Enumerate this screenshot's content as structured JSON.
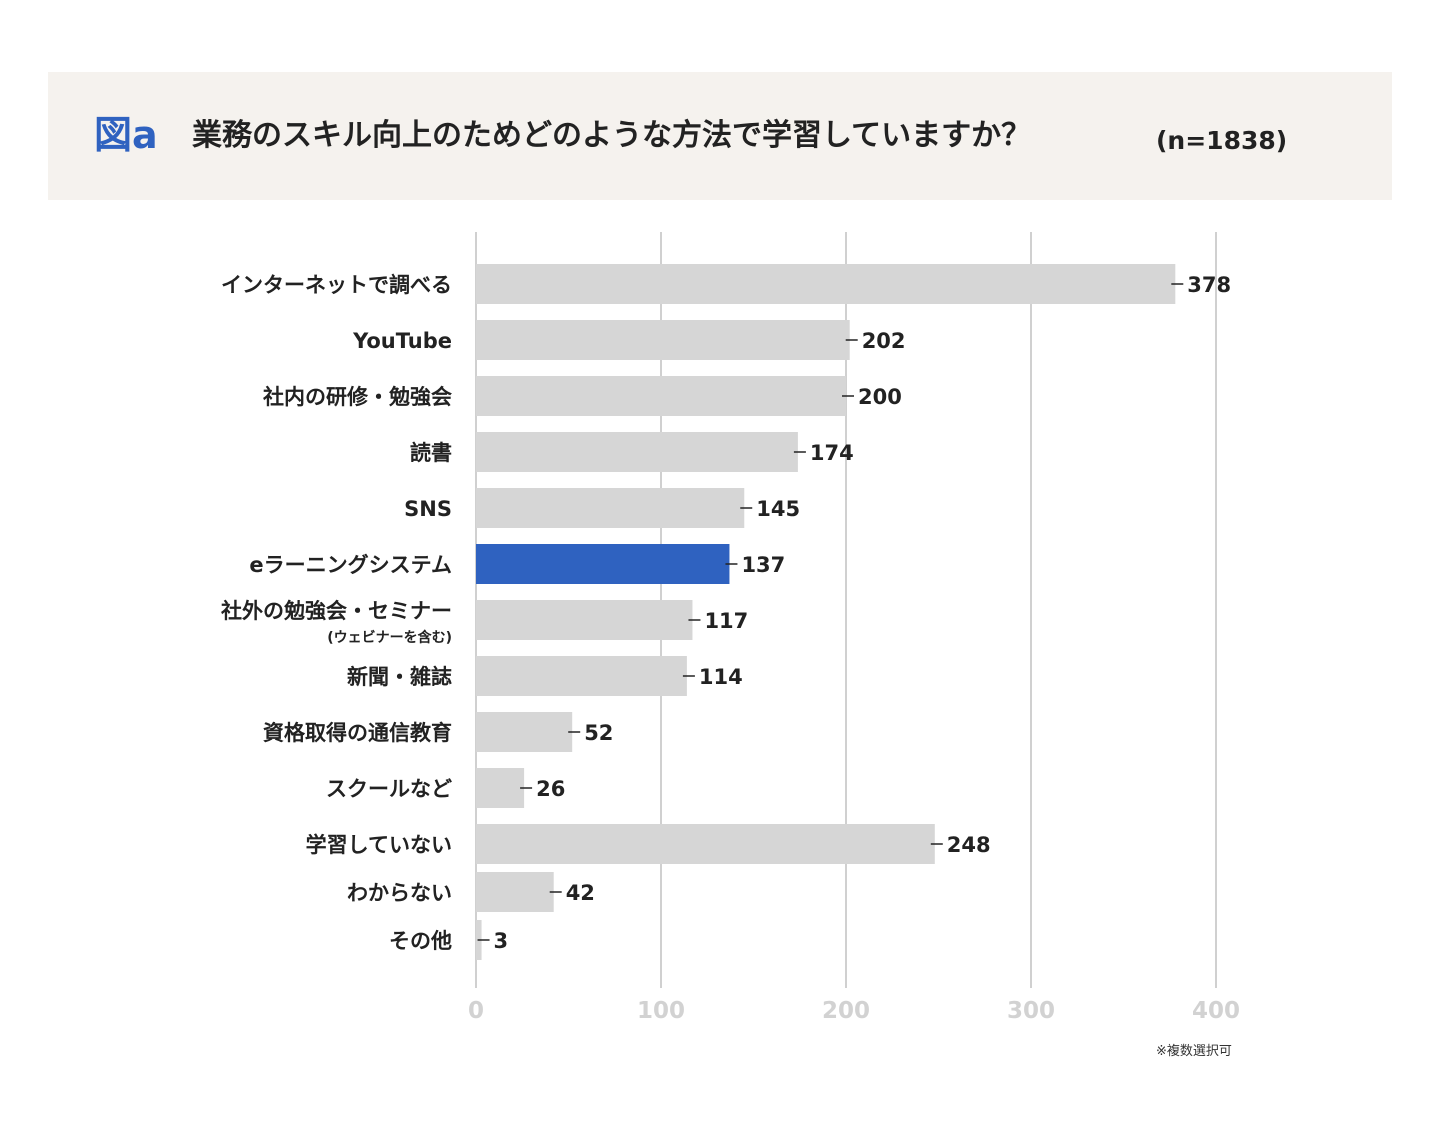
{
  "header": {
    "fig_label": "図a",
    "title": "業務のスキル向上のためどのような方法で学習していますか？",
    "n_label": "(n=1838)"
  },
  "note": "※複数選択可",
  "chart_data": {
    "type": "bar",
    "orientation": "horizontal",
    "categories": [
      "インターネットで調べる",
      "YouTube",
      "社内の研修・勉強会",
      "読書",
      "SNS",
      "eラーニングシステム",
      "社外の勉強会・セミナー",
      "新聞・雑誌",
      "資格取得の通信教育",
      "スクールなど",
      "学習していない",
      "わからない",
      "その他"
    ],
    "category_sublabels": [
      "",
      "",
      "",
      "",
      "",
      "",
      "(ウェビナーを含む)",
      "",
      "",
      "",
      "",
      "",
      ""
    ],
    "values": [
      378,
      202,
      200,
      174,
      145,
      137,
      117,
      114,
      52,
      26,
      248,
      42,
      3
    ],
    "highlight_category": "eラーニングシステム",
    "xlim": [
      0,
      400
    ],
    "xticks": [
      "0",
      "100",
      "200",
      "300",
      "400"
    ],
    "grid": true,
    "colors": {
      "bar": "#d6d6d6",
      "highlight": "#2f62c0",
      "grid": "#d0d0d0",
      "tick_label": "#d2d2d2"
    }
  }
}
